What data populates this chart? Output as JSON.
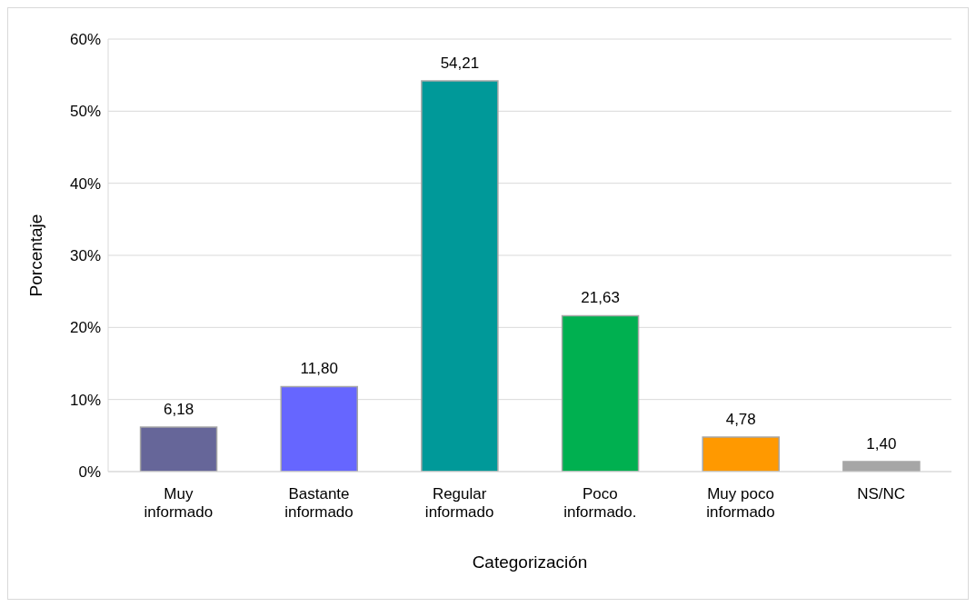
{
  "chart_data": {
    "type": "bar",
    "xlabel": "Categorización",
    "ylabel": "Porcentaje",
    "categories": [
      "Muy informado",
      "Bastante informado",
      "Regular informado",
      "Poco informado.",
      "Muy poco informado",
      "NS/NC"
    ],
    "values": [
      6.18,
      11.8,
      54.21,
      21.63,
      4.78,
      1.4
    ],
    "colors": [
      "#666699",
      "#6666ff",
      "#009999",
      "#00b050",
      "#ff9900",
      "#a6a6a6"
    ],
    "value_labels": [
      "6,18",
      "11,80",
      "54,21",
      "21,63",
      "4,78",
      "1,40"
    ],
    "ylim": [
      0,
      60
    ],
    "yticks": [
      {
        "value": 0,
        "label": "0%"
      },
      {
        "value": 10,
        "label": "10%"
      },
      {
        "value": 20,
        "label": "20%"
      },
      {
        "value": 30,
        "label": "30%"
      },
      {
        "value": 40,
        "label": "40%"
      },
      {
        "value": 50,
        "label": "50%"
      },
      {
        "value": 60,
        "label": "60%"
      }
    ],
    "grid": "y",
    "legend": false
  }
}
